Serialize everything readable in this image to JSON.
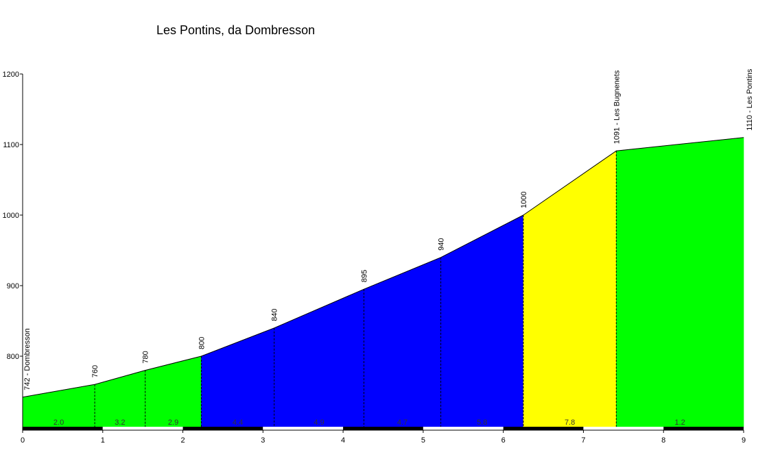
{
  "chart_data": {
    "type": "area",
    "title": "Les Pontins, da Dombresson",
    "xlabel": "",
    "ylabel": "",
    "xlim": [
      0,
      9
    ],
    "ylim": [
      700,
      1200
    ],
    "x_ticks": [
      "0",
      "1",
      "2",
      "3",
      "4",
      "5",
      "6",
      "7",
      "8",
      "9"
    ],
    "y_ticks": [
      "800",
      "900",
      "1000",
      "1100",
      "1200"
    ],
    "profile": [
      {
        "km": 0,
        "elevation": 742,
        "label": "742 - Dombresson"
      },
      {
        "km": 0.9,
        "elevation": 760,
        "label": "760"
      },
      {
        "km": 1.53,
        "elevation": 780,
        "label": "780"
      },
      {
        "km": 2.23,
        "elevation": 800,
        "label": "800"
      },
      {
        "km": 3.14,
        "elevation": 840,
        "label": "840"
      },
      {
        "km": 4.26,
        "elevation": 895,
        "label": "895"
      },
      {
        "km": 5.22,
        "elevation": 940,
        "label": "940"
      },
      {
        "km": 6.25,
        "elevation": 1000,
        "label": "1000"
      },
      {
        "km": 7.41,
        "elevation": 1091,
        "label": "1091 - Les Bugnenets"
      },
      {
        "km": 9.0,
        "elevation": 1110,
        "label": "1110 - Les Pontins"
      }
    ],
    "segments": [
      {
        "from_km": 0,
        "to_km": 0.9,
        "gradient": "2.0",
        "color": "#00ff00"
      },
      {
        "from_km": 0.9,
        "to_km": 1.53,
        "gradient": "3.2",
        "color": "#00ff00"
      },
      {
        "from_km": 1.53,
        "to_km": 2.23,
        "gradient": "2.9",
        "color": "#00ff00"
      },
      {
        "from_km": 2.23,
        "to_km": 3.14,
        "gradient": "4.4",
        "color": "#0000ff"
      },
      {
        "from_km": 3.14,
        "to_km": 4.26,
        "gradient": "4.9",
        "color": "#0000ff"
      },
      {
        "from_km": 4.26,
        "to_km": 5.22,
        "gradient": "4.7",
        "color": "#0000ff"
      },
      {
        "from_km": 5.22,
        "to_km": 6.25,
        "gradient": "5.8",
        "color": "#0000ff"
      },
      {
        "from_km": 6.25,
        "to_km": 7.41,
        "gradient": "7.8",
        "color": "#ffff00"
      },
      {
        "from_km": 7.41,
        "to_km": 9.0,
        "gradient": "1.2",
        "color": "#00ff00"
      }
    ],
    "grid": false,
    "legend": "none"
  }
}
